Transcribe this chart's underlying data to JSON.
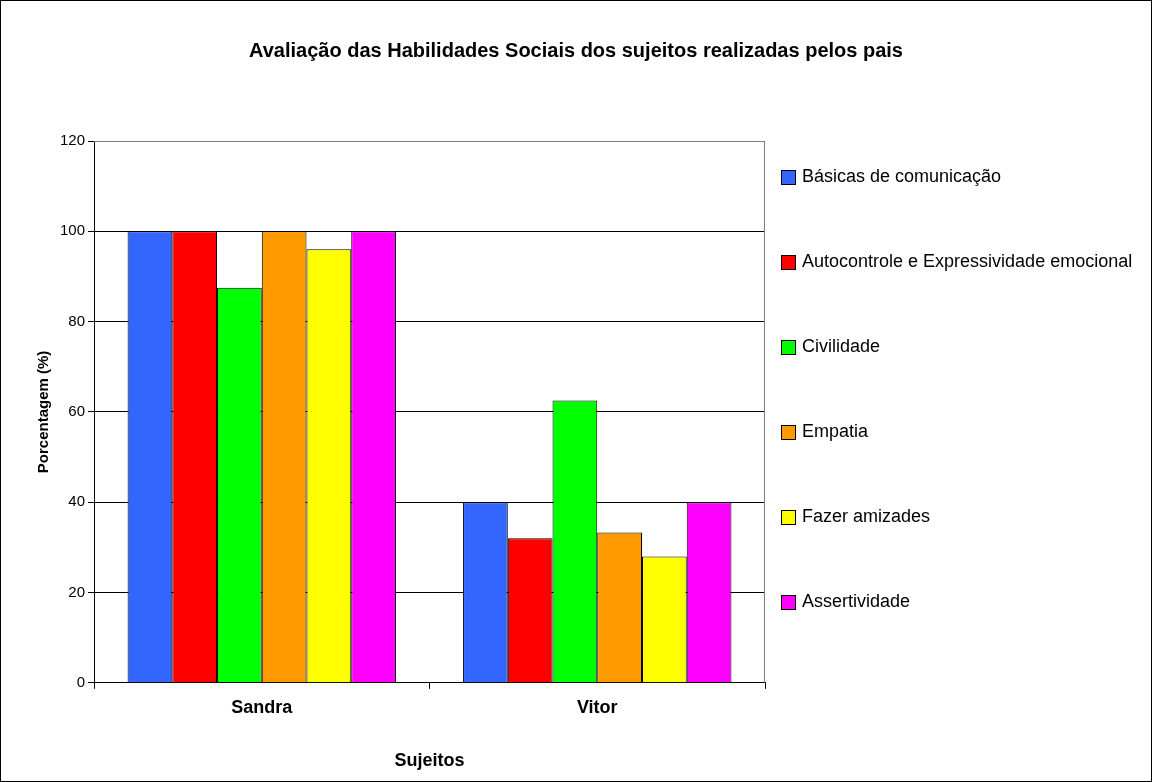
{
  "chart_data": {
    "type": "bar",
    "title": "Avaliação das Habilidades Sociais dos sujeitos realizadas pelos pais",
    "xlabel": "Sujeitos",
    "ylabel": "Porcentagem (%)",
    "categories": [
      "Sandra",
      "Vitor"
    ],
    "series": [
      {
        "name": "Básicas de comunicação",
        "color": "#3366ff",
        "values": [
          100,
          40
        ]
      },
      {
        "name": "Autocontrole e Expressividade emocional",
        "color": "#ff0000",
        "values": [
          100,
          32
        ]
      },
      {
        "name": "Civilidade",
        "color": "#00ff00",
        "values": [
          87.5,
          62.5
        ]
      },
      {
        "name": "Empatia",
        "color": "#ff9900",
        "values": [
          100,
          33.3
        ]
      },
      {
        "name": "Fazer amizades",
        "color": "#ffff00",
        "values": [
          96,
          28
        ]
      },
      {
        "name": "Assertividade",
        "color": "#ff00ff",
        "values": [
          100,
          40
        ]
      }
    ],
    "ylim": [
      0,
      120
    ],
    "yticks": [
      0,
      20,
      40,
      60,
      80,
      100,
      120
    ],
    "grid": "y",
    "legend": "right"
  }
}
